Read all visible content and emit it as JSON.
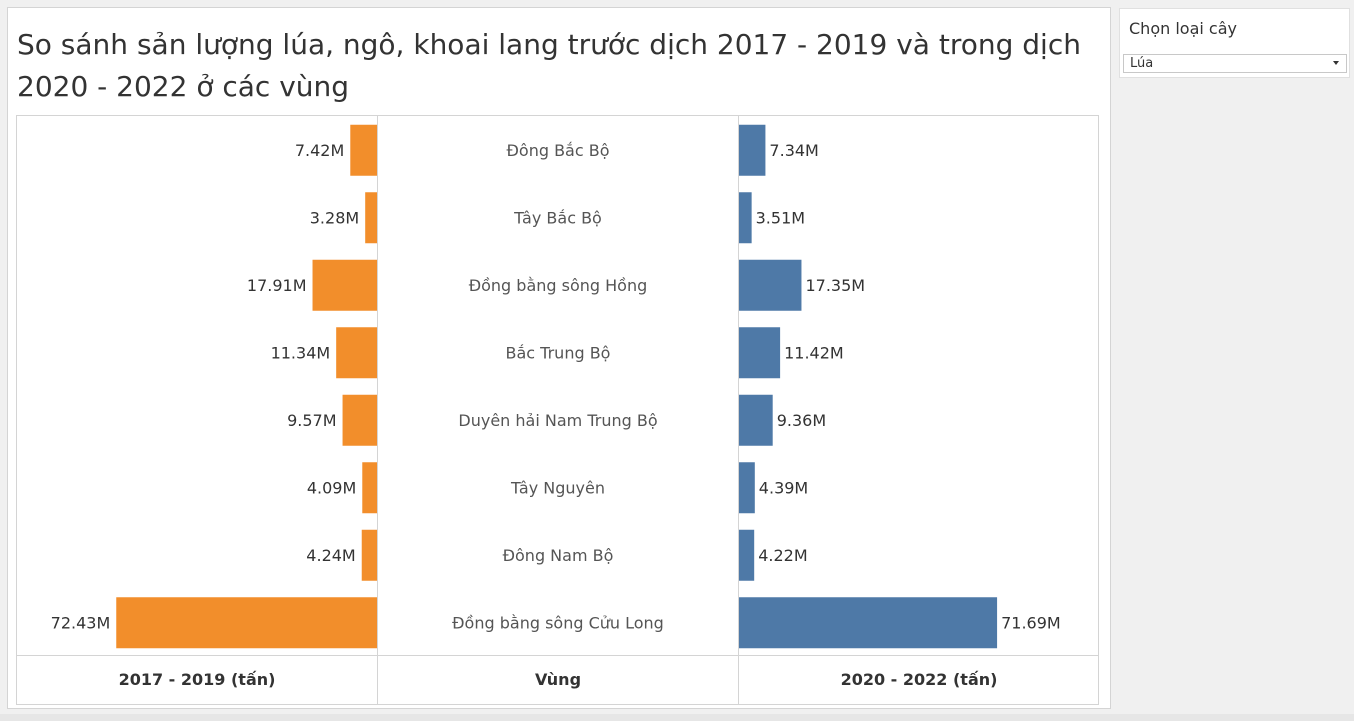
{
  "title": "So sánh sản lượng lúa, ngô, khoai lang trước dịch 2017 - 2019 và trong dịch 2020 - 2022 ở các vùng",
  "filter": {
    "title": "Chọn loại cây",
    "selected": "Lúa"
  },
  "colors": {
    "before": "#f28e2b",
    "during": "#4e79a7"
  },
  "chart_data": {
    "type": "bar",
    "layout": "butterfly",
    "categories": [
      "Đông Bắc Bộ",
      "Tây Bắc Bộ",
      "Đồng bằng sông Hồng",
      "Bắc Trung Bộ",
      "Duyên hải Nam Trung Bộ",
      "Tây Nguyên",
      "Đông Nam Bộ",
      "Đồng bằng sông Cửu Long"
    ],
    "series": [
      {
        "name": "2017 - 2019 (tấn)",
        "values": [
          7.42,
          3.28,
          17.91,
          11.34,
          9.57,
          4.09,
          4.24,
          72.43
        ],
        "labels": [
          "7.42M",
          "3.28M",
          "17.91M",
          "11.34M",
          "9.57M",
          "4.09M",
          "4.24M",
          "72.43M"
        ]
      },
      {
        "name": "2020 - 2022 (tấn)",
        "values": [
          7.34,
          3.51,
          17.35,
          11.42,
          9.36,
          4.39,
          4.22,
          71.69
        ],
        "labels": [
          "7.34M",
          "3.51M",
          "17.35M",
          "11.42M",
          "9.36M",
          "4.39M",
          "4.22M",
          "71.69M"
        ]
      }
    ],
    "column_headers": {
      "left": "2017 - 2019 (tấn)",
      "center": "Vùng",
      "right": "2020 - 2022 (tấn)"
    },
    "unit": "M",
    "xlim": [
      0,
      100
    ]
  }
}
